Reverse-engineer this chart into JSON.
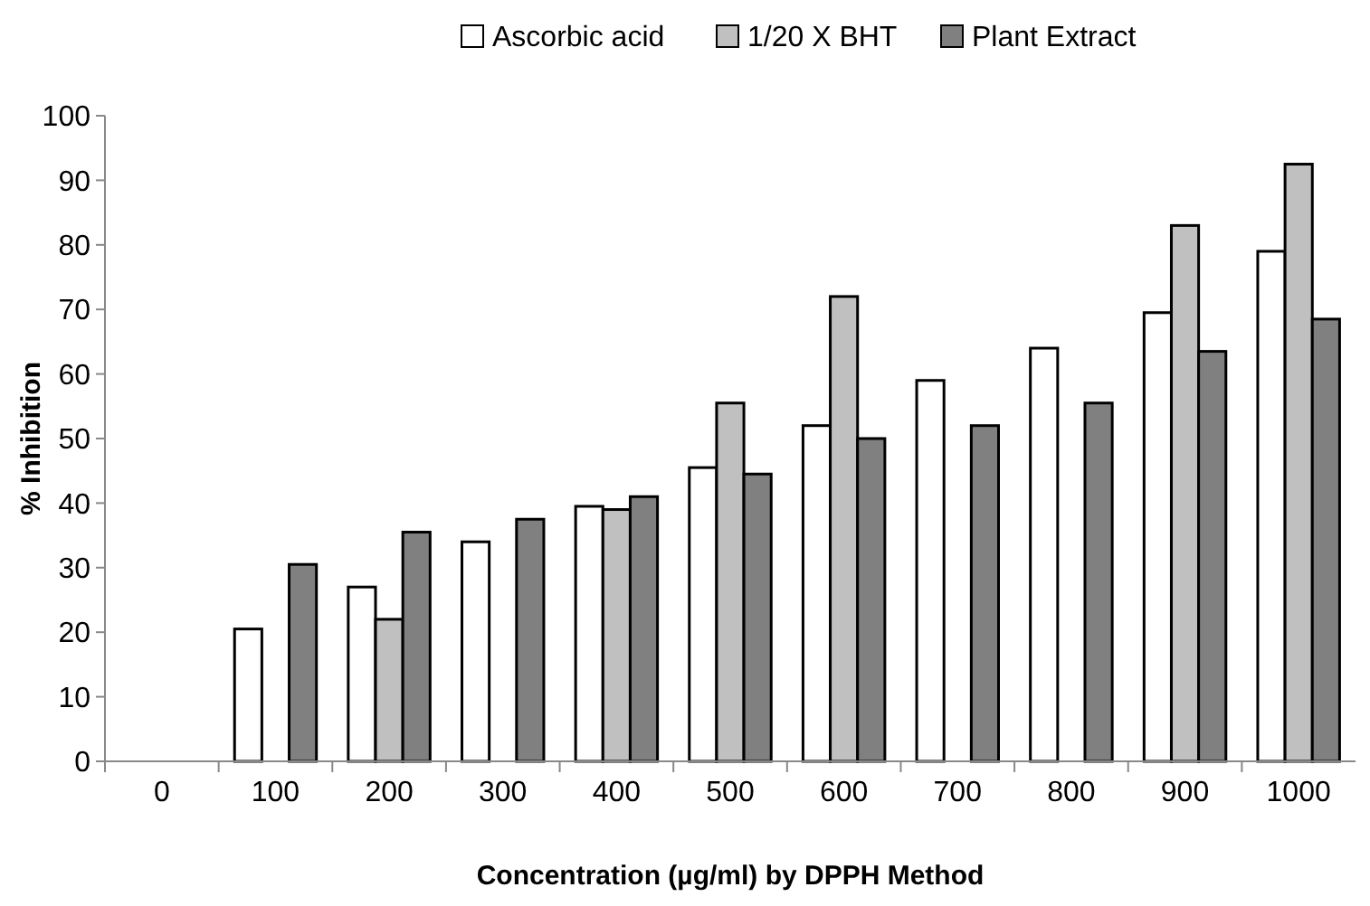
{
  "chart_data": {
    "type": "bar",
    "xlabel": "Concentration (µg/ml) by DPPH Method",
    "ylabel": "% Inhibition",
    "categories": [
      "0",
      "100",
      "200",
      "300",
      "400",
      "500",
      "600",
      "700",
      "800",
      "900",
      "1000"
    ],
    "series": [
      {
        "name": "Ascorbic acid",
        "color": "#ffffff",
        "values": [
          null,
          20.5,
          27,
          34,
          39.5,
          45.5,
          52,
          59,
          64,
          69.5,
          79
        ]
      },
      {
        "name": "1/20 X BHT",
        "color": "#c0c0c0",
        "values": [
          null,
          null,
          22,
          null,
          39,
          55.5,
          72,
          null,
          null,
          83,
          92.5
        ]
      },
      {
        "name": "Plant Extract",
        "color": "#808080",
        "values": [
          null,
          30.5,
          35.5,
          37.5,
          41,
          44.5,
          50,
          52,
          55.5,
          63.5,
          68.5
        ]
      }
    ],
    "ylim": [
      0,
      100
    ],
    "yticks": [
      0,
      10,
      20,
      30,
      40,
      50,
      60,
      70,
      80,
      90,
      100
    ],
    "grid": false,
    "legend": "top"
  }
}
